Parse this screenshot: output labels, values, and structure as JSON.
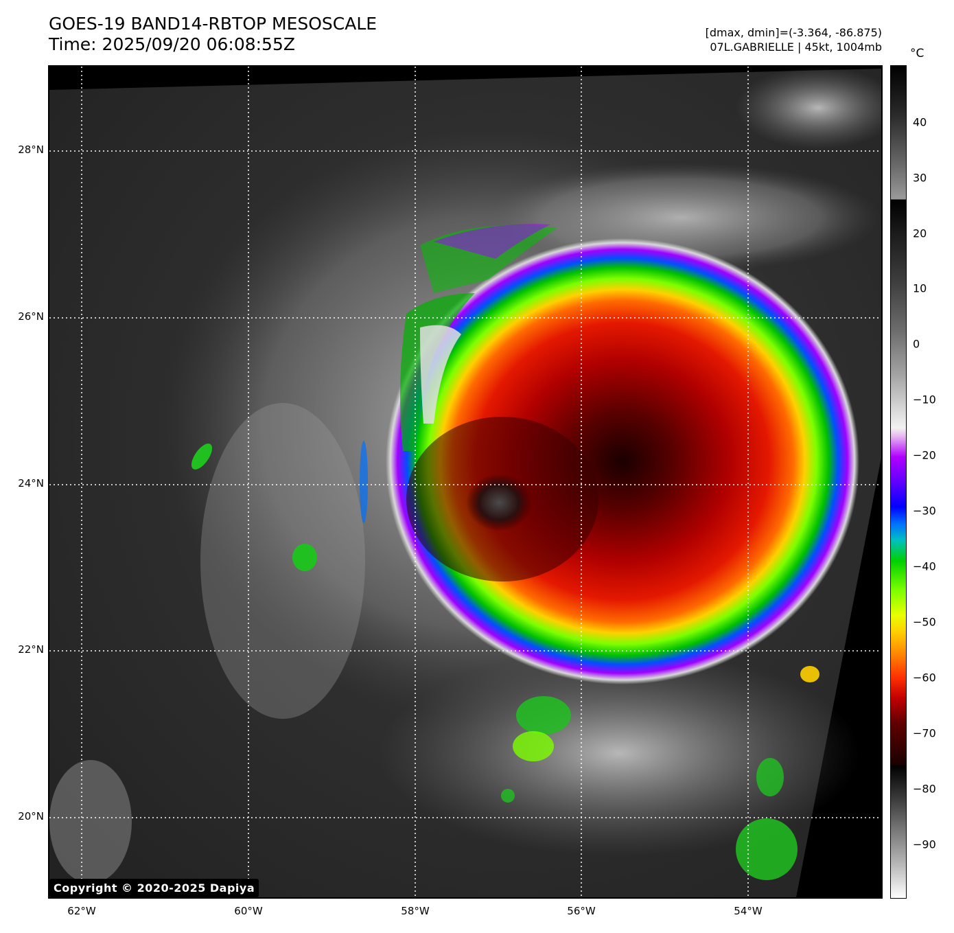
{
  "header": {
    "title_line1": "GOES-19 BAND14-RBTOP MESOSCALE",
    "title_line2": "Time: 2025/09/20 06:08:55Z",
    "stats_line1": "[dmax, dmin]=(-3.364, -86.875)",
    "stats_line2": "07L.GABRIELLE | 45kt, 1004mb"
  },
  "map": {
    "lat_labels": [
      "28°N",
      "26°N",
      "24°N",
      "22°N",
      "20°N"
    ],
    "lon_labels": [
      "62°W",
      "60°W",
      "58°W",
      "56°W",
      "54°W"
    ]
  },
  "colorbar": {
    "unit": "°C",
    "ticks": [
      "40",
      "30",
      "20",
      "10",
      "0",
      "−10",
      "−20",
      "−30",
      "−40",
      "−50",
      "−60",
      "−70",
      "−80",
      "−90"
    ]
  },
  "copyright": "Copyright © 2020-2025 Dapiya"
}
